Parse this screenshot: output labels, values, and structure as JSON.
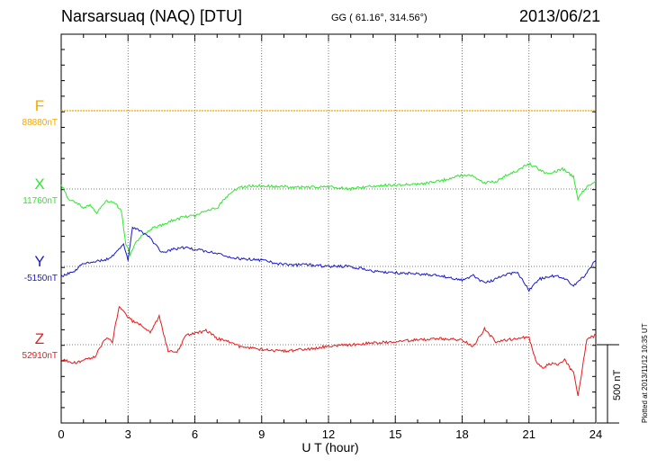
{
  "header": {
    "station": "Narsarsuaq (NAQ)  [DTU]",
    "coords": "GG ( 61.16°, 314.56°)",
    "date": "2013/06/21"
  },
  "channels": [
    {
      "name": "F",
      "baseline": "88880nT",
      "color": "#f5a800"
    },
    {
      "name": "X",
      "baseline": "11760nT",
      "color": "#2ee82e"
    },
    {
      "name": "Y",
      "baseline": "-5150nT",
      "color": "#1a1acc"
    },
    {
      "name": "Z",
      "baseline": "52910nT",
      "color": "#e81a1a"
    }
  ],
  "footer": {
    "plotted": "Plotted at 2013/11/12 10:35 UT",
    "scale": "500 nT"
  },
  "chart_data": {
    "type": "line",
    "xlabel": "U T (hour)",
    "xlim": [
      0,
      24
    ],
    "xticks": [
      0,
      3,
      6,
      9,
      12,
      15,
      18,
      21,
      24
    ],
    "grid": true,
    "units": "nT",
    "series": [
      {
        "name": "F",
        "baseline": 88880,
        "x": [
          0,
          24
        ],
        "y": [
          0,
          0
        ]
      },
      {
        "name": "X",
        "baseline": 11760,
        "x": [
          0,
          0.3,
          0.6,
          1.0,
          1.3,
          1.6,
          2.0,
          2.4,
          2.7,
          2.9,
          3.1,
          3.3,
          3.6,
          4.0,
          4.5,
          5.0,
          5.5,
          6.0,
          6.5,
          7.0,
          7.5,
          8.0,
          8.5,
          9.0,
          10,
          11,
          12,
          13,
          14,
          15,
          16,
          17,
          18,
          18.5,
          19,
          19.5,
          20,
          20.5,
          21,
          21.3,
          21.6,
          22,
          22.5,
          23,
          23.2,
          23.5,
          24
        ],
        "y": [
          30,
          -60,
          -80,
          -120,
          -100,
          -150,
          -80,
          -90,
          -140,
          -350,
          -420,
          -350,
          -300,
          -260,
          -230,
          -200,
          -180,
          -170,
          -140,
          -120,
          -40,
          10,
          20,
          20,
          15,
          10,
          15,
          0,
          20,
          25,
          30,
          50,
          90,
          80,
          40,
          45,
          90,
          120,
          160,
          140,
          110,
          100,
          130,
          80,
          -60,
          0,
          50
        ]
      },
      {
        "name": "Y",
        "baseline": -5150,
        "x": [
          0,
          0.5,
          1.0,
          1.5,
          2.0,
          2.5,
          2.8,
          3.0,
          3.2,
          3.5,
          4.0,
          4.5,
          5.0,
          5.5,
          6.0,
          7.0,
          8.0,
          9.0,
          10,
          11,
          12,
          13,
          14,
          15,
          16,
          17,
          18,
          18.5,
          19,
          20,
          20.5,
          21,
          21.5,
          22,
          22.5,
          23,
          23.5,
          24
        ],
        "y": [
          -60,
          -40,
          20,
          30,
          40,
          90,
          150,
          40,
          250,
          230,
          180,
          90,
          110,
          120,
          110,
          80,
          50,
          40,
          10,
          10,
          0,
          0,
          -30,
          -40,
          -50,
          -60,
          -90,
          -60,
          -110,
          -50,
          -40,
          -150,
          -80,
          -60,
          -70,
          -120,
          -60,
          40
        ]
      },
      {
        "name": "Z",
        "baseline": 52910,
        "x": [
          0,
          0.5,
          1.0,
          1.5,
          2.0,
          2.3,
          2.6,
          3.0,
          3.2,
          3.6,
          4.0,
          4.4,
          4.8,
          5.2,
          5.6,
          6.0,
          6.5,
          7.0,
          7.5,
          8.0,
          8.5,
          9.0,
          10,
          11,
          12,
          13,
          14,
          15,
          16,
          17,
          18,
          18.5,
          19,
          19.5,
          20,
          20.5,
          21,
          21.3,
          21.6,
          22,
          22.3,
          22.6,
          23,
          23.2,
          23.4,
          23.6,
          24
        ],
        "y": [
          -90,
          -120,
          -100,
          -80,
          40,
          20,
          250,
          180,
          150,
          130,
          80,
          180,
          -40,
          -50,
          60,
          70,
          90,
          40,
          20,
          -10,
          -20,
          -30,
          -40,
          -30,
          -10,
          0,
          10,
          20,
          30,
          40,
          30,
          -10,
          100,
          20,
          30,
          40,
          50,
          -100,
          -150,
          -120,
          -130,
          -100,
          -180,
          -320,
          -150,
          40,
          60
        ]
      }
    ]
  }
}
